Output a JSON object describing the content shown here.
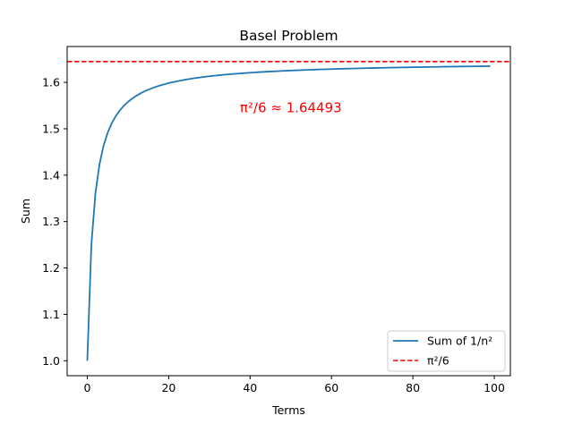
{
  "chart_data": {
    "type": "line",
    "title": "Basel Problem",
    "xlabel": "Terms",
    "ylabel": "Sum",
    "xlim": [
      -4.95,
      103.95
    ],
    "ylim": [
      0.9678,
      1.6773
    ],
    "xticks": [
      0,
      20,
      40,
      60,
      80,
      100
    ],
    "yticks": [
      1.0,
      1.1,
      1.2,
      1.3,
      1.4,
      1.5,
      1.6
    ],
    "xtick_labels": [
      "0",
      "20",
      "40",
      "60",
      "80",
      "100"
    ],
    "ytick_labels": [
      "1.0",
      "1.1",
      "1.2",
      "1.3",
      "1.4",
      "1.5",
      "1.6"
    ],
    "grid": false,
    "legend_position": "lower-right",
    "series": [
      {
        "name": "Sum of 1/n²",
        "kind": "partial_sums_inverse_squares",
        "x_start": 0,
        "x_end": 99,
        "color": "#1f77b4",
        "style": "solid"
      },
      {
        "name": "π²/6",
        "kind": "horizontal_line",
        "y": 1.6449340668,
        "color": "#ff0000",
        "style": "dashed"
      }
    ],
    "annotation": {
      "text": "π²/6 ≈ 1.64493",
      "x": 50,
      "y": 1.545,
      "color": "#ff0000"
    }
  }
}
